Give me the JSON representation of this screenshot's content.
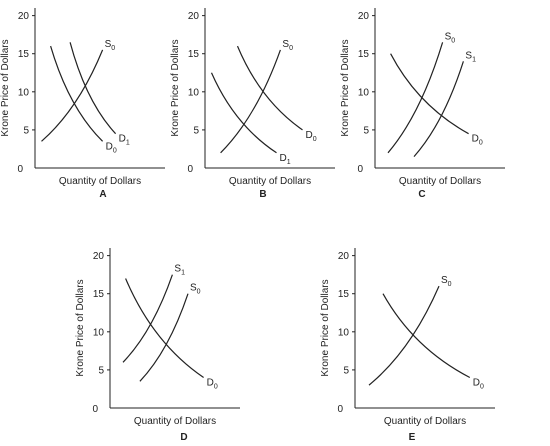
{
  "chart_data": [
    {
      "type": "line",
      "panel_label": "A",
      "xlabel": "Quantity of Dollars",
      "ylabel": "Krone Price of Dollars",
      "yticks": [
        "0",
        "5",
        "10",
        "15",
        "20"
      ],
      "ylim": [
        0,
        21
      ],
      "grid": false,
      "series": [
        {
          "name": "D0",
          "label_main": "D",
          "label_sub": "0",
          "points": [
            [
              0.12,
              16
            ],
            [
              0.52,
              3.5
            ]
          ]
        },
        {
          "name": "D1",
          "label_main": "D",
          "label_sub": "1",
          "points": [
            [
              0.27,
              16.5
            ],
            [
              0.62,
              4.5
            ]
          ]
        },
        {
          "name": "S0",
          "label_main": "S",
          "label_sub": "0",
          "points": [
            [
              0.05,
              3.5
            ],
            [
              0.52,
              15.5
            ]
          ]
        }
      ]
    },
    {
      "type": "line",
      "panel_label": "B",
      "xlabel": "Quantity of Dollars",
      "ylabel": "Krone Price of Dollars",
      "yticks": [
        "0",
        "5",
        "10",
        "15",
        "20"
      ],
      "ylim": [
        0,
        21
      ],
      "grid": false,
      "series": [
        {
          "name": "D0",
          "label_main": "D",
          "label_sub": "0",
          "points": [
            [
              0.25,
              16
            ],
            [
              0.75,
              5
            ]
          ]
        },
        {
          "name": "D1",
          "label_main": "D",
          "label_sub": "1",
          "points": [
            [
              0.05,
              12.5
            ],
            [
              0.55,
              2
            ]
          ]
        },
        {
          "name": "S0",
          "label_main": "S",
          "label_sub": "0",
          "points": [
            [
              0.12,
              2
            ],
            [
              0.58,
              15.5
            ]
          ]
        }
      ]
    },
    {
      "type": "line",
      "panel_label": "C",
      "xlabel": "Quantity of Dollars",
      "ylabel": "Krone Price of Dollars",
      "yticks": [
        "0",
        "5",
        "10",
        "15",
        "20"
      ],
      "ylim": [
        0,
        21
      ],
      "grid": false,
      "series": [
        {
          "name": "D0",
          "label_main": "D",
          "label_sub": "0",
          "points": [
            [
              0.12,
              15
            ],
            [
              0.72,
              4.5
            ]
          ]
        },
        {
          "name": "S0",
          "label_main": "S",
          "label_sub": "0",
          "points": [
            [
              0.1,
              2
            ],
            [
              0.52,
              16.5
            ]
          ]
        },
        {
          "name": "S1",
          "label_main": "S",
          "label_sub": "1",
          "points": [
            [
              0.3,
              1.5
            ],
            [
              0.68,
              14
            ]
          ]
        }
      ]
    },
    {
      "type": "line",
      "panel_label": "D",
      "xlabel": "Quantity of Dollars",
      "ylabel": "Krone Price of Dollars",
      "yticks": [
        "0",
        "5",
        "10",
        "15",
        "20"
      ],
      "ylim": [
        0,
        21
      ],
      "grid": false,
      "series": [
        {
          "name": "D0",
          "label_main": "D",
          "label_sub": "0",
          "points": [
            [
              0.12,
              17
            ],
            [
              0.72,
              4
            ]
          ]
        },
        {
          "name": "S0",
          "label_main": "S",
          "label_sub": "0",
          "points": [
            [
              0.23,
              3.5
            ],
            [
              0.6,
              15
            ]
          ]
        },
        {
          "name": "S1",
          "label_main": "S",
          "label_sub": "1",
          "points": [
            [
              0.1,
              6
            ],
            [
              0.48,
              17.5
            ]
          ]
        }
      ]
    },
    {
      "type": "line",
      "panel_label": "E",
      "xlabel": "Quantity of Dollars",
      "ylabel": "Krone Price of Dollars",
      "yticks": [
        "0",
        "5",
        "10",
        "15",
        "20"
      ],
      "ylim": [
        0,
        21
      ],
      "grid": false,
      "series": [
        {
          "name": "D0",
          "label_main": "D",
          "label_sub": "0",
          "points": [
            [
              0.2,
              15
            ],
            [
              0.82,
              4
            ]
          ]
        },
        {
          "name": "S0",
          "label_main": "S",
          "label_sub": "0",
          "points": [
            [
              0.1,
              3
            ],
            [
              0.6,
              16
            ]
          ]
        }
      ]
    }
  ]
}
